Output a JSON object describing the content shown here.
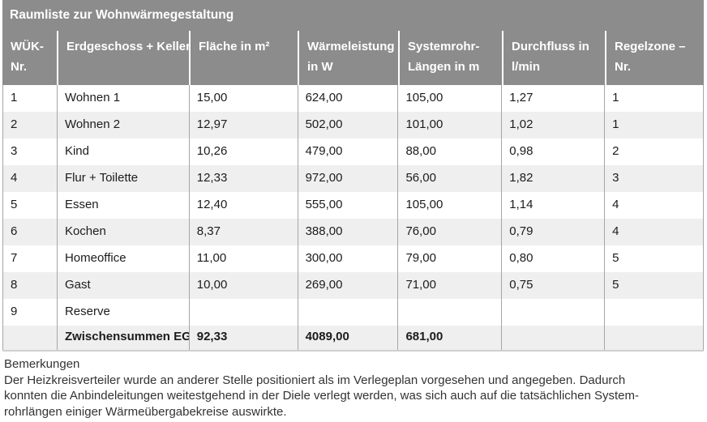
{
  "colors": {
    "header_bg": "#8c8c8c",
    "header_text": "#ffffff",
    "row_stripe": "#efefef",
    "grid_line": "#a6a6a6",
    "body_text": "#1c1c1c"
  },
  "table": {
    "title": "Raumliste zur Wohnwärmegestaltung",
    "columns": [
      {
        "id": "wuek_nr",
        "lines": [
          "WÜK-",
          "Nr."
        ]
      },
      {
        "id": "raum",
        "lines": [
          "Erdgeschoss + Keller"
        ]
      },
      {
        "id": "flaeche",
        "lines": [
          "Fläche in m²"
        ]
      },
      {
        "id": "leistung",
        "lines": [
          "Wärmeleistung",
          "in W"
        ]
      },
      {
        "id": "rohr",
        "lines": [
          "Systemrohr-",
          "Längen in m"
        ]
      },
      {
        "id": "durchfluss",
        "lines": [
          "Durchfluss in",
          "l/min"
        ]
      },
      {
        "id": "zone",
        "lines": [
          "Regelzone –",
          "Nr."
        ]
      }
    ],
    "rows": [
      {
        "nr": "1",
        "raum": "Wohnen 1",
        "flaeche": "15,00",
        "leistung": "624,00",
        "rohr": "105,00",
        "durchfluss": "1,27",
        "zone": "1"
      },
      {
        "nr": "2",
        "raum": "Wohnen 2",
        "flaeche": "12,97",
        "leistung": "502,00",
        "rohr": "101,00",
        "durchfluss": "1,02",
        "zone": "1"
      },
      {
        "nr": "3",
        "raum": "Kind",
        "flaeche": "10,26",
        "leistung": "479,00",
        "rohr": "88,00",
        "durchfluss": "0,98",
        "zone": "2"
      },
      {
        "nr": "4",
        "raum": "Flur + Toilette",
        "flaeche": "12,33",
        "leistung": "972,00",
        "rohr": "56,00",
        "durchfluss": "1,82",
        "zone": "3"
      },
      {
        "nr": "5",
        "raum": "Essen",
        "flaeche": "12,40",
        "leistung": "555,00",
        "rohr": "105,00",
        "durchfluss": "1,14",
        "zone": "4"
      },
      {
        "nr": "6",
        "raum": "Kochen",
        "flaeche": "8,37",
        "leistung": "388,00",
        "rohr": "76,00",
        "durchfluss": "0,79",
        "zone": "4"
      },
      {
        "nr": "7",
        "raum": "Homeoffice",
        "flaeche": "11,00",
        "leistung": "300,00",
        "rohr": "79,00",
        "durchfluss": "0,80",
        "zone": "5"
      },
      {
        "nr": "8",
        "raum": "Gast",
        "flaeche": "10,00",
        "leistung": "269,00",
        "rohr": "71,00",
        "durchfluss": "0,75",
        "zone": "5"
      },
      {
        "nr": "9",
        "raum": "Reserve",
        "flaeche": "",
        "leistung": "",
        "rohr": "",
        "durchfluss": "",
        "zone": ""
      }
    ],
    "subtotal": {
      "nr": "",
      "label": "Zwischensummen EG",
      "flaeche": "92,33",
      "leistung": "4089,00",
      "rohr": "681,00",
      "durchfluss": "",
      "zone": ""
    }
  },
  "remarks": {
    "heading": "Bemerkungen",
    "lines": [
      "Der Heizkreisverteiler wurde an anderer Stelle positioniert als im Verlegeplan vorgesehen und angegeben. Dadurch",
      "konnten die Anbindeleitungen weitestgehend in der Diele verlegt werden, was sich auch auf die tatsächlichen System-",
      "rohrlängen einiger Wärmeübergabekreise auswirkte."
    ]
  }
}
